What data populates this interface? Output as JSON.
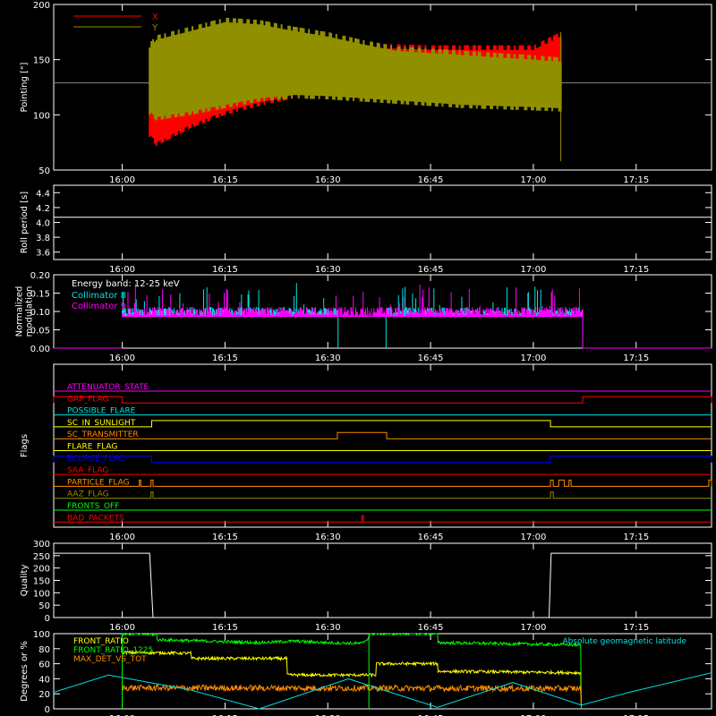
{
  "time_ticks": [
    "16:00",
    "16:15",
    "16:30",
    "16:45",
    "17:00",
    "17:15"
  ],
  "time_ticks_min": [
    0,
    15,
    30,
    45,
    60,
    75
  ],
  "colors": {
    "axis": "#ffffff",
    "bg": "#000000",
    "red": "#ff0000",
    "olive": "#8f8f00",
    "cyan": "#00e5e5",
    "magenta": "#ff00ff",
    "yellow": "#ffff00",
    "green": "#00ff00",
    "orange": "#ff8c00",
    "blue": "#0000ff"
  },
  "chart_data": [
    {
      "type": "line",
      "ylabel": "Pointing [\"]",
      "ylim": [
        50,
        200
      ],
      "yticks": [
        50,
        100,
        150,
        200
      ],
      "legend": [
        "X",
        "Y"
      ],
      "series": [
        {
          "name": "X",
          "color": "#ff0000",
          "x": [
            4,
            5,
            10,
            15,
            20,
            25,
            30,
            35,
            40,
            45,
            50,
            55,
            60,
            64
          ],
          "upper": [
            160,
            170,
            175,
            178,
            176,
            172,
            168,
            165,
            164,
            163,
            163,
            163,
            163,
            175
          ],
          "lower": [
            80,
            72,
            88,
            100,
            108,
            115,
            120,
            125,
            128,
            130,
            132,
            134,
            135,
            112
          ]
        },
        {
          "name": "Y",
          "color": "#8f8f00",
          "x": [
            4,
            5,
            10,
            15,
            20,
            25,
            30,
            35,
            40,
            45,
            50,
            55,
            60,
            64
          ],
          "upper": [
            165,
            172,
            180,
            188,
            186,
            180,
            175,
            168,
            162,
            160,
            158,
            156,
            154,
            152
          ],
          "lower": [
            100,
            95,
            100,
            106,
            112,
            115,
            114,
            112,
            110,
            108,
            106,
            105,
            104,
            103
          ]
        }
      ],
      "baseline": 129
    },
    {
      "type": "line",
      "ylabel": "Roll period [s]",
      "ylim": [
        3.5,
        4.5
      ],
      "yticks": [
        "3.6",
        "3.8",
        "4.0",
        "4.2",
        "4.4"
      ],
      "series": [
        {
          "value": 4.07
        }
      ]
    },
    {
      "type": "line",
      "ylabel_lines": [
        "Normalized",
        "modulation"
      ],
      "ylim": [
        0,
        0.2
      ],
      "yticks": [
        "0.00",
        "0.05",
        "0.10",
        "0.15",
        "0.20"
      ],
      "annotation": "Energy band: 12-25 keV",
      "series": [
        {
          "name": "Collimator 8",
          "color": "#00e5e5",
          "x_start": 0.0,
          "x_end": 67.2,
          "level": 0.1,
          "gaps": [
            [
              31.5,
              38.5
            ]
          ]
        },
        {
          "name": "Collimator 9",
          "color": "#ff00ff",
          "x_start": 0.0,
          "x_end": 67.2,
          "level": 0.1
        }
      ]
    },
    {
      "type": "line",
      "ylabel": "Flags",
      "flags": [
        {
          "name": "ATTENUATOR_STATE",
          "color": "#ff00ff",
          "segments": []
        },
        {
          "name": "GAP_FLAG",
          "color": "#ff0000",
          "segments": [
            [
              -10,
              0
            ],
            [
              67.2,
              86
            ]
          ]
        },
        {
          "name": "POSSIBLE_FLARE",
          "color": "#00e5e5",
          "segments": []
        },
        {
          "name": "SC_IN_SUNLIGHT",
          "color": "#ffff00",
          "segments": [
            [
              4.3,
              62.5
            ]
          ]
        },
        {
          "name": "SC_TRANSMITTER",
          "color": "#ff8c00",
          "segments": [
            [
              31.4,
              38.6
            ]
          ]
        },
        {
          "name": "FLARE_FLAG",
          "color": "#ffff00",
          "segments": []
        },
        {
          "name": "ECLIPSE_FLAG",
          "color": "#0000ff",
          "segments": [
            [
              -10,
              4.3
            ],
            [
              62.5,
              86
            ]
          ]
        },
        {
          "name": "SAA_FLAG",
          "color": "#ff0000",
          "segments": []
        },
        {
          "name": "PARTICLE_FLAG",
          "color": "#ff8c00",
          "segments": [
            [
              2.5,
              2.7
            ],
            [
              4.2,
              4.5
            ],
            [
              62.5,
              62.9
            ],
            [
              63.7,
              64.5
            ],
            [
              65.2,
              65.5
            ],
            [
              85.6,
              86
            ]
          ]
        },
        {
          "name": "AAZ_FLAG",
          "color": "#8f8f00",
          "segments": [
            [
              4.2,
              4.5
            ],
            [
              62.5,
              62.9
            ]
          ]
        },
        {
          "name": "FRONTS_OFF",
          "color": "#00ff00",
          "segments": []
        },
        {
          "name": "BAD_PACKETS",
          "color": "#ff0000",
          "segments": [
            [
              35.0,
              35.2
            ]
          ]
        }
      ]
    },
    {
      "type": "line",
      "ylabel": "Quality",
      "ylim": [
        0,
        300
      ],
      "yticks": [
        0,
        50,
        100,
        150,
        200,
        250,
        300
      ],
      "series": [
        {
          "x": [
            -10,
            4.0,
            4.5,
            62.3,
            62.6,
            86
          ],
          "y": [
            260,
            260,
            0,
            0,
            260,
            260
          ]
        }
      ]
    },
    {
      "type": "line",
      "ylabel": "Degrees or %",
      "ylim": [
        0,
        100
      ],
      "yticks": [
        0,
        20,
        40,
        60,
        80,
        100
      ],
      "legend_right": "Absolute geomagnetic latitude",
      "series": [
        {
          "name": "FRONT_RATIO",
          "color": "#ffff00",
          "x": [
            0,
            10,
            10.1,
            24,
            24.1,
            37,
            37.1,
            46,
            46.1,
            67
          ],
          "y": [
            75,
            74,
            67,
            67,
            45,
            45,
            60,
            60,
            50,
            48
          ]
        },
        {
          "name": "FRONT_RATIO_1225",
          "color": "#00ff00",
          "x": [
            0,
            5,
            5.1,
            20,
            25,
            30,
            35,
            36,
            36.1,
            46,
            46.1,
            67
          ],
          "y": [
            100,
            99,
            92,
            88,
            90,
            88,
            87,
            95,
            100,
            100,
            88,
            85
          ]
        },
        {
          "name": "MAX_DET_VS_TOT",
          "color": "#ff8c00",
          "x": [
            0,
            67
          ],
          "y": [
            28,
            27
          ]
        },
        {
          "name": "Absolute geomagnetic latitude",
          "color": "#00e5e5",
          "x": [
            -10,
            -2,
            10,
            20,
            33,
            46,
            57,
            67,
            74,
            86
          ],
          "y": [
            22,
            45,
            25,
            0,
            40,
            2,
            35,
            5,
            22,
            48
          ]
        }
      ]
    }
  ]
}
